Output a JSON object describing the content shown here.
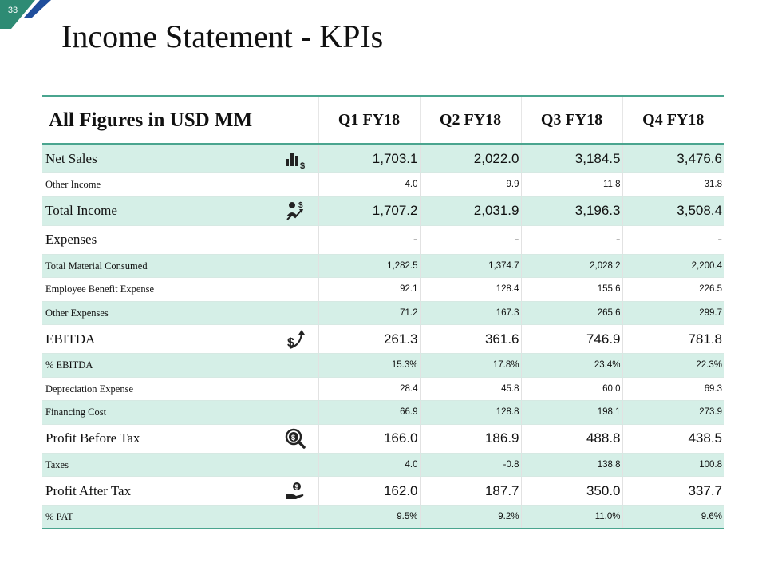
{
  "slide": {
    "number": "33",
    "title": "Income Statement - KPIs"
  },
  "colors": {
    "accent_teal": "#2e8b74",
    "accent_blue": "#1f4e9c",
    "row_shade": "#d5efe7",
    "rule": "#4aa58f"
  },
  "table": {
    "header": [
      "All Figures in USD MM",
      "Q1 FY18",
      "Q2 FY18",
      "Q3 FY18",
      "Q4 FY18"
    ],
    "rows": [
      {
        "label": "Net Sales",
        "values": [
          "1,703.1",
          "2,022.0",
          "3,184.5",
          "3,476.6"
        ],
        "icon": "bar-chart-dollar-icon"
      },
      {
        "label": "Other Income",
        "values": [
          "4.0",
          "9.9",
          "11.8",
          "31.8"
        ]
      },
      {
        "label": "Total Income",
        "values": [
          "1,707.2",
          "2,031.9",
          "3,196.3",
          "3,508.4"
        ],
        "icon": "person-growth-dollar-icon"
      },
      {
        "label": "Expenses",
        "values": [
          "-",
          "-",
          "-",
          "-"
        ]
      },
      {
        "label": "Total Material Consumed",
        "values": [
          "1,282.5",
          "1,374.7",
          "2,028.2",
          "2,200.4"
        ]
      },
      {
        "label": "Employee Benefit Expense",
        "values": [
          "92.1",
          "128.4",
          "155.6",
          "226.5"
        ]
      },
      {
        "label": "Other Expenses",
        "values": [
          "71.2",
          "167.3",
          "265.6",
          "299.7"
        ]
      },
      {
        "label": "EBITDA",
        "values": [
          "261.3",
          "361.6",
          "746.9",
          "781.8"
        ],
        "icon": "dollar-up-arrow-icon"
      },
      {
        "label": "% EBITDA",
        "values": [
          "15.3%",
          "17.8%",
          "23.4%",
          "22.3%"
        ]
      },
      {
        "label": "Depreciation Expense",
        "values": [
          "28.4",
          "45.8",
          "60.0",
          "69.3"
        ]
      },
      {
        "label": "Financing Cost",
        "values": [
          "66.9",
          "128.8",
          "198.1",
          "273.9"
        ]
      },
      {
        "label": "Profit Before Tax",
        "values": [
          "166.0",
          "186.9",
          "488.8",
          "438.5"
        ],
        "icon": "dollar-magnifier-icon"
      },
      {
        "label": "Taxes",
        "values": [
          "4.0",
          "-0.8",
          "138.8",
          "100.8"
        ]
      },
      {
        "label": "Profit After Tax",
        "values": [
          "162.0",
          "187.7",
          "350.0",
          "337.7"
        ],
        "icon": "hand-money-icon"
      },
      {
        "label": "% PAT",
        "values": [
          "9.5%",
          "9.2%",
          "11.0%",
          "9.6%"
        ]
      }
    ]
  }
}
